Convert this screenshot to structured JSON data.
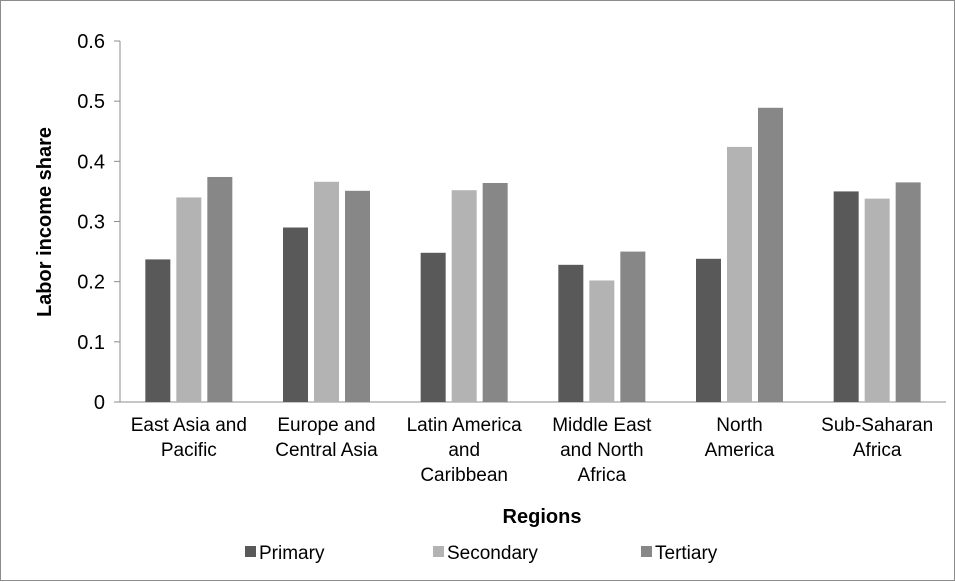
{
  "chart_data": {
    "type": "bar",
    "title": "",
    "xlabel": "Regions",
    "ylabel": "Labor income share",
    "ylim": [
      0,
      0.6
    ],
    "yticks": [
      "0",
      "0.1",
      "0.2",
      "0.3",
      "0.4",
      "0.5",
      "0.6"
    ],
    "grid": false,
    "legend_position": "bottom",
    "categories": [
      [
        "East Asia and",
        "Pacific"
      ],
      [
        "Europe and",
        "Central Asia"
      ],
      [
        "Latin America",
        "and",
        "Caribbean"
      ],
      [
        "Middle East",
        "and North",
        "Africa"
      ],
      [
        "North",
        "America"
      ],
      [
        "Sub-Saharan",
        "Africa"
      ]
    ],
    "series": [
      {
        "name": "Primary",
        "color": "#595959",
        "values": [
          0.237,
          0.29,
          0.248,
          0.228,
          0.238,
          0.35
        ]
      },
      {
        "name": "Secondary",
        "color": "#b3b3b3",
        "values": [
          0.34,
          0.366,
          0.352,
          0.202,
          0.424,
          0.338
        ]
      },
      {
        "name": "Tertiary",
        "color": "#878787",
        "values": [
          0.374,
          0.351,
          0.364,
          0.25,
          0.489,
          0.365
        ]
      }
    ]
  }
}
